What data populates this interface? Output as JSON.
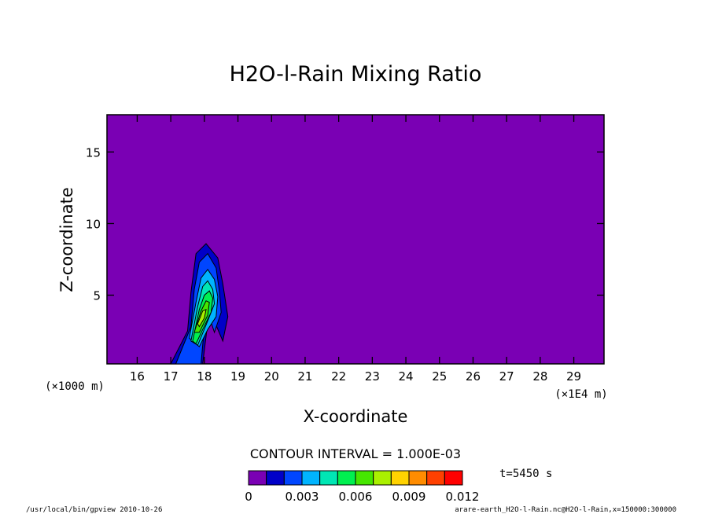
{
  "chart_data": {
    "type": "contour",
    "title": "H2O-l-Rain Mixing Ratio",
    "xlabel": "X-coordinate",
    "ylabel": "Z-coordinate",
    "x_unit_label": "(×1E4 m)",
    "y_unit_label": "(×1000 m)",
    "x_ticks": [
      16,
      17,
      18,
      19,
      20,
      21,
      22,
      23,
      24,
      25,
      26,
      27,
      28,
      29
    ],
    "y_ticks": [
      5,
      10,
      15
    ],
    "xlim": [
      15.1,
      29.9
    ],
    "ylim": [
      0.2,
      17.6
    ],
    "contour_interval_label": "CONTOUR INTERVAL = 1.000E-03",
    "colorbar": {
      "levels": [
        0,
        0.001,
        0.002,
        0.003,
        0.004,
        0.005,
        0.006,
        0.007,
        0.008,
        0.009,
        0.01,
        0.011,
        0.012
      ],
      "tick_labels": [
        "0",
        "0.003",
        "0.006",
        "0.009",
        "0.012"
      ],
      "colors": [
        "#7a00b4",
        "#0000c8",
        "#0046ff",
        "#00b4ff",
        "#00e6b4",
        "#00f050",
        "#46e600",
        "#aaf000",
        "#ffd200",
        "#ff8c00",
        "#ff4000",
        "#ff0000",
        "#ffa0a0"
      ]
    },
    "time_label": "t=5450 s",
    "features": [
      {
        "type": "rain-shaft",
        "x_range": [
          17.0,
          18.7
        ],
        "z_range": [
          0.2,
          8.6
        ],
        "max_value": 0.007
      }
    ]
  },
  "footer": {
    "left": "/usr/local/bin/gpview  2010-10-26",
    "right": "arare-earth_H2O-l-Rain.nc@H2O-l-Rain,x=150000:300000"
  }
}
